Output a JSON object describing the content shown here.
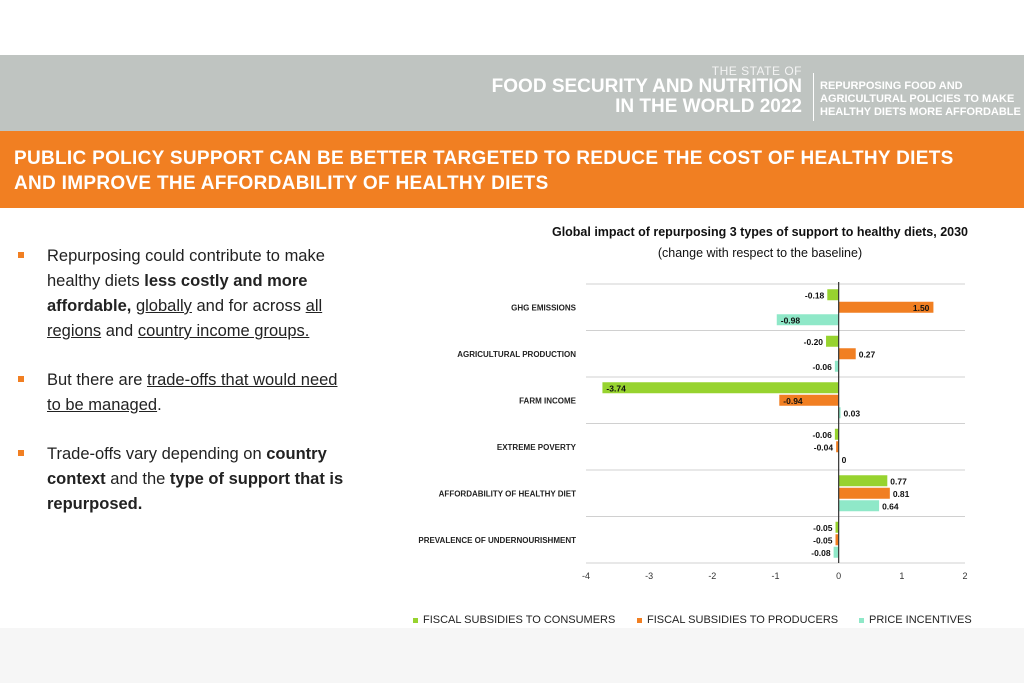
{
  "header": {
    "small_title": "THE STATE OF",
    "big_title_line1": "FOOD SECURITY AND NUTRITION",
    "big_title_line2": "IN THE WORLD 2022",
    "subtitle_line1": "REPURPOSING FOOD AND",
    "subtitle_line2": "AGRICULTURAL POLICIES TO MAKE",
    "subtitle_line3": "HEALTHY DIETS MORE AFFORDABLE"
  },
  "banner": {
    "line1": "PUBLIC POLICY SUPPORT CAN BE BETTER TARGETED TO REDUCE THE COST OF HEALTHY DIETS",
    "line2": "AND IMPROVE THE AFFORDABILITY OF HEALTHY DIETS"
  },
  "bullets": [
    {
      "t1": "Repurposing could contribute to make healthy diets ",
      "t2": "less costly and more affordable,",
      "t3": " ",
      "t4": "globally",
      "t5": " and for across ",
      "t6": "all regions",
      "t7": " and ",
      "t8": "country income groups."
    },
    {
      "t1": "But there are ",
      "t2": "trade-offs that would need to be managed",
      "t3": "."
    },
    {
      "t1": "Trade-offs vary depending on ",
      "t2": "country context",
      "t3": " and the ",
      "t4": "type of support that is repurposed."
    }
  ],
  "colors": {
    "consumers": "#97d32f",
    "producers": "#f17f22",
    "price": "#8fe8c8",
    "banner": "#f17f22",
    "header": "#bfc4c1"
  },
  "chart_data": {
    "type": "bar",
    "orientation": "horizontal",
    "title": "Global impact of repurposing 3 types of support to healthy diets, 2030",
    "subtitle": "(change with respect to the baseline)",
    "categories": [
      "GHG EMISSIONS",
      "AGRICULTURAL PRODUCTION",
      "FARM INCOME",
      "EXTREME POVERTY",
      "AFFORDABILITY OF HEALTHY DIET",
      "PREVALENCE OF UNDERNOURISHMENT"
    ],
    "series": [
      {
        "name": "FISCAL SUBSIDIES TO CONSUMERS",
        "values": [
          -0.18,
          -0.2,
          -3.74,
          -0.06,
          0.77,
          -0.05
        ],
        "labels": [
          "-0.18",
          "-0.20",
          "-3.74",
          "-0.06",
          "0.77",
          "-0.05"
        ]
      },
      {
        "name": "FISCAL SUBSIDIES TO PRODUCERS",
        "values": [
          1.5,
          0.27,
          -0.94,
          -0.04,
          0.81,
          -0.05
        ],
        "labels": [
          "1.50",
          "0.27",
          "-0.94",
          "-0.04",
          "0.81",
          "-0.05"
        ]
      },
      {
        "name": "PRICE INCENTIVES",
        "values": [
          -0.98,
          -0.06,
          0.03,
          0,
          0.64,
          -0.08
        ],
        "labels": [
          "-0.98",
          "-0.06",
          "0.03",
          "0",
          "0.64",
          "-0.08"
        ]
      }
    ],
    "xlim": [
      -4,
      2
    ],
    "xticks": [
      "-4",
      "-3",
      "-2",
      "-1",
      "0",
      "1",
      "2"
    ],
    "legend_position": "bottom",
    "grid": true
  }
}
